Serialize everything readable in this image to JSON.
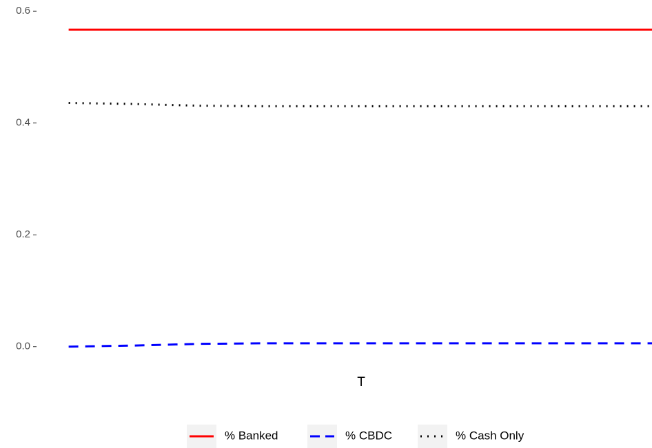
{
  "chart_data": {
    "type": "line",
    "x_label": "T",
    "x": [
      1,
      2,
      3,
      4,
      5,
      6,
      7,
      8,
      9,
      10
    ],
    "xlim": [
      0.6,
      10
    ],
    "ylim": [
      -0.02,
      0.62
    ],
    "yticks": [
      {
        "value": 0,
        "label": "0.0"
      },
      0.2,
      0.4,
      0.6
    ],
    "grid": false,
    "legend": "bottom",
    "series": [
      {
        "name": "% Banked",
        "color": "#ff0000",
        "linetype": "solid",
        "values": [
          0.567,
          0.567,
          0.567,
          0.567,
          0.567,
          0.567,
          0.567,
          0.567,
          0.567,
          0.567
        ]
      },
      {
        "name": "% CBDC",
        "color": "#0000ff",
        "linetype": "dashed",
        "values": [
          0.0,
          0.002,
          0.005,
          0.006,
          0.006,
          0.006,
          0.006,
          0.006,
          0.006,
          0.006
        ]
      },
      {
        "name": "% Cash Only",
        "color": "#000000",
        "linetype": "dotted",
        "values": [
          0.436,
          0.434,
          0.431,
          0.43,
          0.43,
          0.43,
          0.43,
          0.43,
          0.43,
          0.43
        ]
      }
    ]
  }
}
